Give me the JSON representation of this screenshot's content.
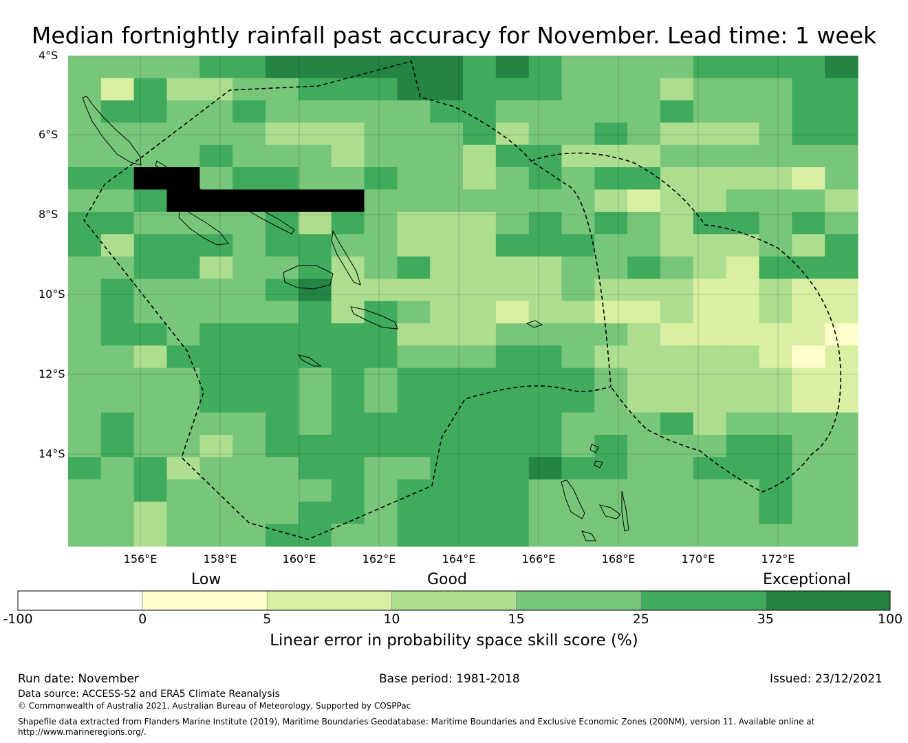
{
  "title": "Median fortnightly rainfall past accuracy for November. Lead time: 1 week",
  "map": {
    "lat_labels": [
      "4°S",
      "6°S",
      "8°S",
      "10°S",
      "12°S",
      "14°S"
    ],
    "lon_labels": [
      "156°E",
      "158°E",
      "160°E",
      "162°E",
      "164°E",
      "166°E",
      "168°E",
      "170°E",
      "172°E"
    ],
    "grid_rows": [
      "444455666666565444455556",
      "425334455566555444344455",
      "455445444445544444544455",
      "444444333444534454333455",
      "444454443444355333444444",
      "558845544544345455333324",
      "445888888444444432334443",
      "554444535433345454355454",
      "535554554433355544333435",
      "445534453453333445432555",
      "454444563333333433322322",
      "454444453543323322322322",
      "455455555533344443222221",
      "443555555544455433333212",
      "444455545455555543333322",
      "444455545455555543333322",
      "454444545555555444534444",
      "454434555555555454445544",
      "545344455445556554455544",
      "445444445455554444444544",
      "443444455455554444444544",
      "443444554455554444444444"
    ]
  },
  "legend": {
    "categories": [
      "Low",
      "Good",
      "Exceptional"
    ],
    "ticks": [
      "-100",
      "0",
      "5",
      "10",
      "15",
      "25",
      "35",
      "100"
    ],
    "colors": [
      "#ffffff",
      "#ffffcc",
      "#d9f0a3",
      "#addd8e",
      "#78c679",
      "#41ab5d",
      "#238443"
    ],
    "title": "Linear error in probability space skill score (%)"
  },
  "footer": {
    "run_date": "Run date: November",
    "base_period": "Base period: 1981-2018",
    "issued": "Issued: 23/12/2021",
    "data_source": "Data source: ACCESS-S2 and ERA5 Climate Reanalysis",
    "copyright": "© Commonwealth of Australia 2021, Australian Bureau of Meteorology, Supported by COSPPac",
    "shapefile_line1": "Shapefile data extracted from Flanders Marine Institute (2019), Maritime Boundaries Geodatabase: Maritime Boundaries and Exclusive Economic Zones (200NM), version 11. Available online at",
    "shapefile_line2": "http://www.marineregions.org/."
  }
}
